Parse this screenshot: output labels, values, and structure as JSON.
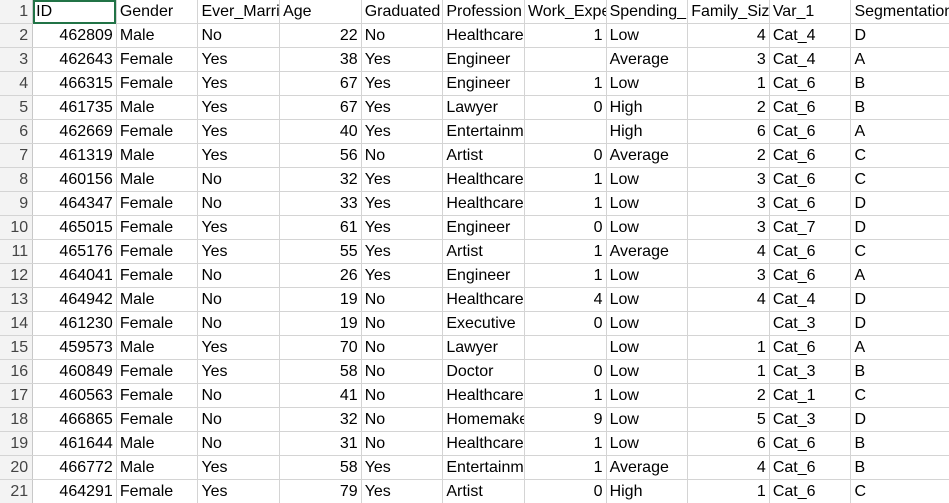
{
  "sheet": {
    "headers": [
      "ID",
      "Gender",
      "Ever_Married",
      "Age",
      "Graduated",
      "Profession",
      "Work_Experience",
      "Spending_Score",
      "Family_Size",
      "Var_1",
      "Segmentation"
    ],
    "rows": [
      {
        "num": "1",
        "cells": [
          "ID",
          "Gender",
          "Ever_Marri",
          "Age",
          "Graduated",
          "Profession",
          "Work_Expe",
          "Spending_S",
          "Family_Siz",
          "Var_1",
          "Segmentation"
        ]
      },
      {
        "num": "2",
        "cells": [
          "462809",
          "Male",
          "No",
          "22",
          "No",
          "Healthcare",
          "1",
          "Low",
          "4",
          "Cat_4",
          "D"
        ]
      },
      {
        "num": "3",
        "cells": [
          "462643",
          "Female",
          "Yes",
          "38",
          "Yes",
          "Engineer",
          "",
          "Average",
          "3",
          "Cat_4",
          "A"
        ]
      },
      {
        "num": "4",
        "cells": [
          "466315",
          "Female",
          "Yes",
          "67",
          "Yes",
          "Engineer",
          "1",
          "Low",
          "1",
          "Cat_6",
          "B"
        ]
      },
      {
        "num": "5",
        "cells": [
          "461735",
          "Male",
          "Yes",
          "67",
          "Yes",
          "Lawyer",
          "0",
          "High",
          "2",
          "Cat_6",
          "B"
        ]
      },
      {
        "num": "6",
        "cells": [
          "462669",
          "Female",
          "Yes",
          "40",
          "Yes",
          "Entertainment",
          "",
          "High",
          "6",
          "Cat_6",
          "A"
        ]
      },
      {
        "num": "7",
        "cells": [
          "461319",
          "Male",
          "Yes",
          "56",
          "No",
          "Artist",
          "0",
          "Average",
          "2",
          "Cat_6",
          "C"
        ]
      },
      {
        "num": "8",
        "cells": [
          "460156",
          "Male",
          "No",
          "32",
          "Yes",
          "Healthcare",
          "1",
          "Low",
          "3",
          "Cat_6",
          "C"
        ]
      },
      {
        "num": "9",
        "cells": [
          "464347",
          "Female",
          "No",
          "33",
          "Yes",
          "Healthcare",
          "1",
          "Low",
          "3",
          "Cat_6",
          "D"
        ]
      },
      {
        "num": "10",
        "cells": [
          "465015",
          "Female",
          "Yes",
          "61",
          "Yes",
          "Engineer",
          "0",
          "Low",
          "3",
          "Cat_7",
          "D"
        ]
      },
      {
        "num": "11",
        "cells": [
          "465176",
          "Female",
          "Yes",
          "55",
          "Yes",
          "Artist",
          "1",
          "Average",
          "4",
          "Cat_6",
          "C"
        ]
      },
      {
        "num": "12",
        "cells": [
          "464041",
          "Female",
          "No",
          "26",
          "Yes",
          "Engineer",
          "1",
          "Low",
          "3",
          "Cat_6",
          "A"
        ]
      },
      {
        "num": "13",
        "cells": [
          "464942",
          "Male",
          "No",
          "19",
          "No",
          "Healthcare",
          "4",
          "Low",
          "4",
          "Cat_4",
          "D"
        ]
      },
      {
        "num": "14",
        "cells": [
          "461230",
          "Female",
          "No",
          "19",
          "No",
          "Executive",
          "0",
          "Low",
          "",
          "Cat_3",
          "D"
        ]
      },
      {
        "num": "15",
        "cells": [
          "459573",
          "Male",
          "Yes",
          "70",
          "No",
          "Lawyer",
          "",
          "Low",
          "1",
          "Cat_6",
          "A"
        ]
      },
      {
        "num": "16",
        "cells": [
          "460849",
          "Female",
          "Yes",
          "58",
          "No",
          "Doctor",
          "0",
          "Low",
          "1",
          "Cat_3",
          "B"
        ]
      },
      {
        "num": "17",
        "cells": [
          "460563",
          "Female",
          "No",
          "41",
          "No",
          "Healthcare",
          "1",
          "Low",
          "2",
          "Cat_1",
          "C"
        ]
      },
      {
        "num": "18",
        "cells": [
          "466865",
          "Female",
          "No",
          "32",
          "No",
          "Homemaker",
          "9",
          "Low",
          "5",
          "Cat_3",
          "D"
        ]
      },
      {
        "num": "19",
        "cells": [
          "461644",
          "Male",
          "No",
          "31",
          "No",
          "Healthcare",
          "1",
          "Low",
          "6",
          "Cat_6",
          "B"
        ]
      },
      {
        "num": "20",
        "cells": [
          "466772",
          "Male",
          "Yes",
          "58",
          "Yes",
          "Entertainment",
          "1",
          "Average",
          "4",
          "Cat_6",
          "B"
        ]
      },
      {
        "num": "21",
        "cells": [
          "464291",
          "Female",
          "Yes",
          "79",
          "Yes",
          "Artist",
          "0",
          "High",
          "1",
          "Cat_6",
          "C"
        ]
      }
    ]
  }
}
